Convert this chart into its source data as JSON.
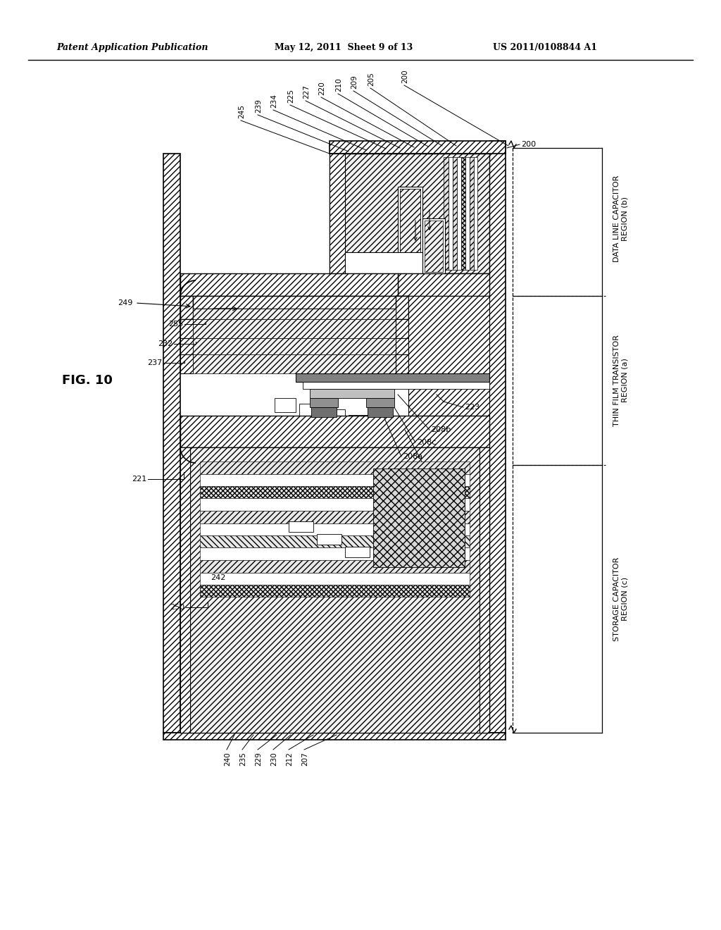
{
  "header_left": "Patent Application Publication",
  "header_center": "May 12, 2011  Sheet 9 of 13",
  "header_right": "US 2011/0108844 A1",
  "fig_label": "FIG. 10",
  "bg": "#ffffff",
  "lc": "#000000",
  "top_labels": [
    [
      "245",
      338,
      168,
      468,
      218
    ],
    [
      "239",
      362,
      160,
      495,
      215
    ],
    [
      "234",
      384,
      153,
      520,
      213
    ],
    [
      "225",
      408,
      146,
      548,
      211
    ],
    [
      "227",
      430,
      140,
      568,
      210
    ],
    [
      "220",
      452,
      135,
      588,
      209
    ],
    [
      "210",
      476,
      130,
      608,
      208
    ],
    [
      "209",
      498,
      126,
      628,
      207
    ],
    [
      "205",
      522,
      122,
      648,
      207
    ],
    [
      "200",
      570,
      118,
      722,
      207
    ]
  ],
  "bottom_labels": [
    [
      "240",
      318,
      1067,
      333,
      1043
    ],
    [
      "235",
      340,
      1067,
      360,
      1043
    ],
    [
      "229",
      362,
      1067,
      393,
      1043
    ],
    [
      "230",
      384,
      1067,
      413,
      1043
    ],
    [
      "212",
      406,
      1067,
      445,
      1043
    ],
    [
      "207",
      428,
      1067,
      478,
      1043
    ]
  ]
}
